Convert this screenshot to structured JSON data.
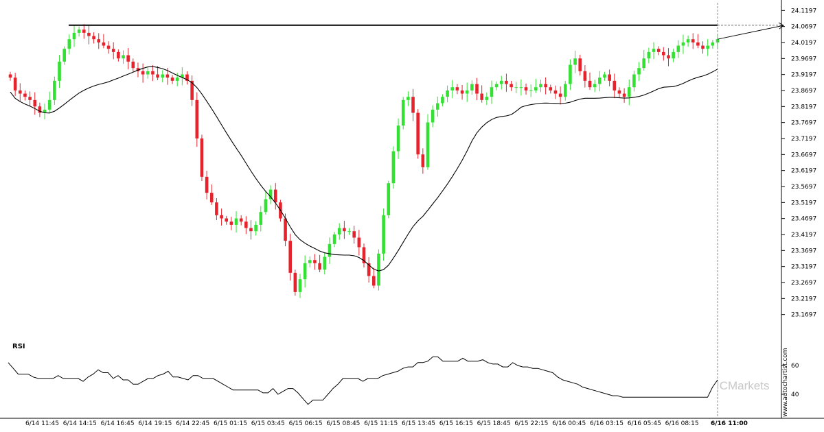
{
  "chart_data": [
    {
      "type": "candlestick",
      "title": "",
      "ylim": [
        23.1197,
        24.1397
      ],
      "y_ticks": [
        "24.1197",
        "24.0697",
        "24.0197",
        "23.9697",
        "23.9197",
        "23.8697",
        "23.8197",
        "23.7697",
        "23.7197",
        "23.6697",
        "23.6197",
        "23.5697",
        "23.5197",
        "23.4697",
        "23.4197",
        "23.3697",
        "23.3197",
        "23.2697",
        "23.2197",
        "23.1697"
      ],
      "x_ticks": [
        "6/14 11:45",
        "6/14 14:15",
        "6/14 16:45",
        "6/14 19:15",
        "6/14 22:45",
        "6/15 01:15",
        "6/15 03:45",
        "6/15 06:15",
        "6/15 08:45",
        "6/15 11:15",
        "6/15 13:45",
        "6/15 16:15",
        "6/15 18:45",
        "6/15 22:15",
        "6/16 00:45",
        "6/16 03:15",
        "6/16 05:45",
        "6/16 08:15",
        "6/16 11:00"
      ],
      "x_tick_bold_index": 18,
      "resistance_level": 24.0737,
      "forecast_end": 24.073,
      "colors": {
        "up": "#33e033",
        "down": "#e6232d",
        "ma": "#000000",
        "level": "#000000"
      },
      "close": [
        23.91,
        23.87,
        23.86,
        23.85,
        23.84,
        23.82,
        23.8,
        23.81,
        23.84,
        23.9,
        23.96,
        24.0,
        24.03,
        24.05,
        24.06,
        24.05,
        24.04,
        24.03,
        24.02,
        24.01,
        24.0,
        23.99,
        23.97,
        23.98,
        23.96,
        23.94,
        23.93,
        23.92,
        23.93,
        23.92,
        23.91,
        23.92,
        23.91,
        23.9,
        23.91,
        23.92,
        23.9,
        23.84,
        23.72,
        23.6,
        23.55,
        23.52,
        23.48,
        23.47,
        23.46,
        23.45,
        23.47,
        23.46,
        23.44,
        23.43,
        23.45,
        23.49,
        23.53,
        23.56,
        23.52,
        23.47,
        23.4,
        23.3,
        23.24,
        23.28,
        23.33,
        23.34,
        23.33,
        23.31,
        23.35,
        23.39,
        23.42,
        23.44,
        23.43,
        23.43,
        23.41,
        23.38,
        23.33,
        23.29,
        23.26,
        23.36,
        23.48,
        23.58,
        23.68,
        23.76,
        23.84,
        23.85,
        23.8,
        23.67,
        23.63,
        23.77,
        23.81,
        23.83,
        23.85,
        23.87,
        23.88,
        23.87,
        23.86,
        23.87,
        23.89,
        23.86,
        23.84,
        23.85,
        23.88,
        23.89,
        23.9,
        23.89,
        23.88,
        23.88,
        23.88,
        23.87,
        23.87,
        23.88,
        23.89,
        23.88,
        23.87,
        23.86,
        23.85,
        23.89,
        23.95,
        23.97,
        23.93,
        23.9,
        23.88,
        23.89,
        23.91,
        23.92,
        23.9,
        23.87,
        23.86,
        23.85,
        23.88,
        23.92,
        23.94,
        23.97,
        23.99,
        24.0,
        23.99,
        23.98,
        23.97,
        23.99,
        24.01,
        24.02,
        24.03,
        24.02,
        24.01,
        24.0,
        24.01,
        24.02,
        24.03
      ]
    },
    {
      "type": "line",
      "title": "RSI",
      "ylim": [
        30,
        70
      ],
      "y_ticks": [
        "60",
        "40"
      ],
      "values": [
        62,
        58,
        54,
        54,
        54,
        52,
        51,
        51,
        51,
        51,
        53,
        51,
        51,
        51,
        51,
        49,
        52,
        54,
        57,
        55,
        55,
        51,
        53,
        50,
        50,
        47,
        47,
        49,
        51,
        51,
        53,
        54,
        56,
        52,
        52,
        51,
        50,
        53,
        53,
        51,
        51,
        51,
        49,
        47,
        45,
        43,
        43,
        43,
        43,
        43,
        43,
        41,
        41,
        44,
        40,
        42,
        44,
        44,
        41,
        37,
        33,
        36,
        36,
        36,
        40,
        44,
        47,
        51,
        51,
        51,
        51,
        49,
        51,
        51,
        51,
        53,
        54,
        55,
        56,
        58,
        59,
        59,
        62,
        62,
        63,
        66,
        66,
        63,
        63,
        63,
        63,
        65,
        63,
        63,
        63,
        64,
        62,
        61,
        61,
        59,
        59,
        62,
        60,
        59,
        59,
        58,
        58,
        57,
        56,
        55,
        52,
        50,
        49,
        48,
        47,
        45,
        44,
        43,
        42,
        41,
        40,
        39,
        39,
        38,
        38,
        38,
        38,
        38,
        38,
        38,
        38,
        38,
        38,
        38,
        38,
        38,
        38,
        38,
        38,
        38,
        38,
        45,
        50
      ]
    }
  ],
  "watermark": {
    "site": "www.autochartist.com",
    "brand": "ICMarkets"
  }
}
